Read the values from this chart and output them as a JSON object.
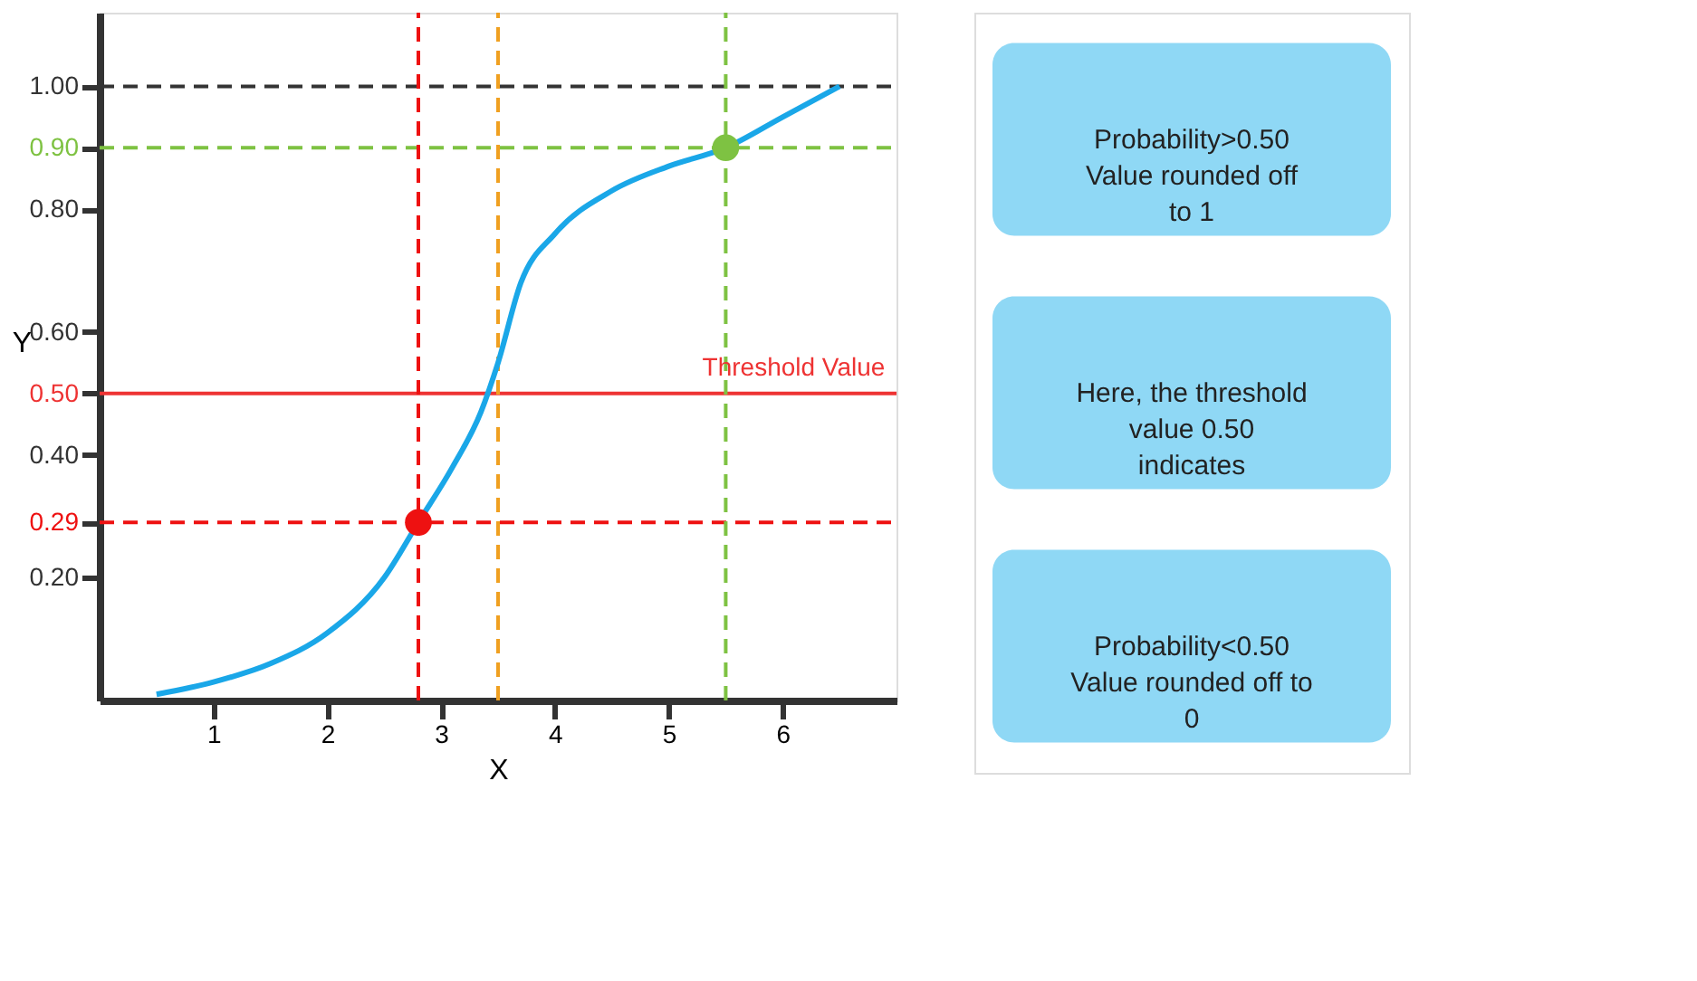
{
  "chart_data": {
    "type": "line",
    "xlabel": "X",
    "ylabel": "Y",
    "xlim": [
      0,
      7
    ],
    "ylim": [
      0,
      1.12
    ],
    "xticks": [
      1,
      2,
      3,
      4,
      5,
      6
    ],
    "yticks": [
      {
        "value": 0.2,
        "label": "0.20"
      },
      {
        "value": 0.29,
        "label": "0.29"
      },
      {
        "value": 0.4,
        "label": "0.40"
      },
      {
        "value": 0.5,
        "label": "0.50"
      },
      {
        "value": 0.6,
        "label": "0.60"
      },
      {
        "value": 0.8,
        "label": "0.80"
      },
      {
        "value": 0.9,
        "label": "0.90"
      },
      {
        "value": 1.0,
        "label": "1.00"
      }
    ],
    "grid": false,
    "series": [
      {
        "color": "#1aa7e8",
        "x": [
          0.5,
          1,
          1.5,
          2,
          2.5,
          2.8,
          3.1,
          3.35,
          3.5,
          3.7,
          4,
          4.5,
          5,
          5.5,
          6,
          6.5
        ],
        "values": [
          0.01,
          0.03,
          0.06,
          0.11,
          0.2,
          0.29,
          0.38,
          0.47,
          0.55,
          0.68,
          0.76,
          0.83,
          0.87,
          0.9,
          0.95,
          1.0
        ]
      },
      {
        "type": "scatter",
        "color": "#ee1111",
        "marker": "circle",
        "x": [
          2.8
        ],
        "values": [
          0.29
        ]
      },
      {
        "type": "scatter",
        "color": "#7ec242",
        "marker": "circle",
        "x": [
          5.5
        ],
        "values": [
          0.9
        ]
      }
    ],
    "ref_lines": [
      {
        "axis": "y",
        "value": 1.0,
        "color": "#333333",
        "line_style": "dashed"
      },
      {
        "axis": "y",
        "value": 0.9,
        "color": "#7ec242",
        "line_style": "dashed"
      },
      {
        "axis": "y",
        "value": 0.5,
        "color": "#ee3333",
        "line_style": "solid",
        "label": "Threshold Value"
      },
      {
        "axis": "y",
        "value": 0.29,
        "color": "#ee1111",
        "line_style": "dashed"
      },
      {
        "axis": "x",
        "value": 2.8,
        "color": "#ee1111",
        "line_style": "dashed"
      },
      {
        "axis": "x",
        "value": 3.5,
        "color": "#f0a020",
        "line_style": "dashed"
      },
      {
        "axis": "x",
        "value": 5.5,
        "color": "#7ec242",
        "line_style": "dashed"
      }
    ],
    "annotations": [
      "Probability>0.50\nValue rounded off\nto 1",
      "Here, the threshold\nvalue 0.50\nindicates",
      "Probability<0.50\nValue rounded off to\n0"
    ]
  }
}
